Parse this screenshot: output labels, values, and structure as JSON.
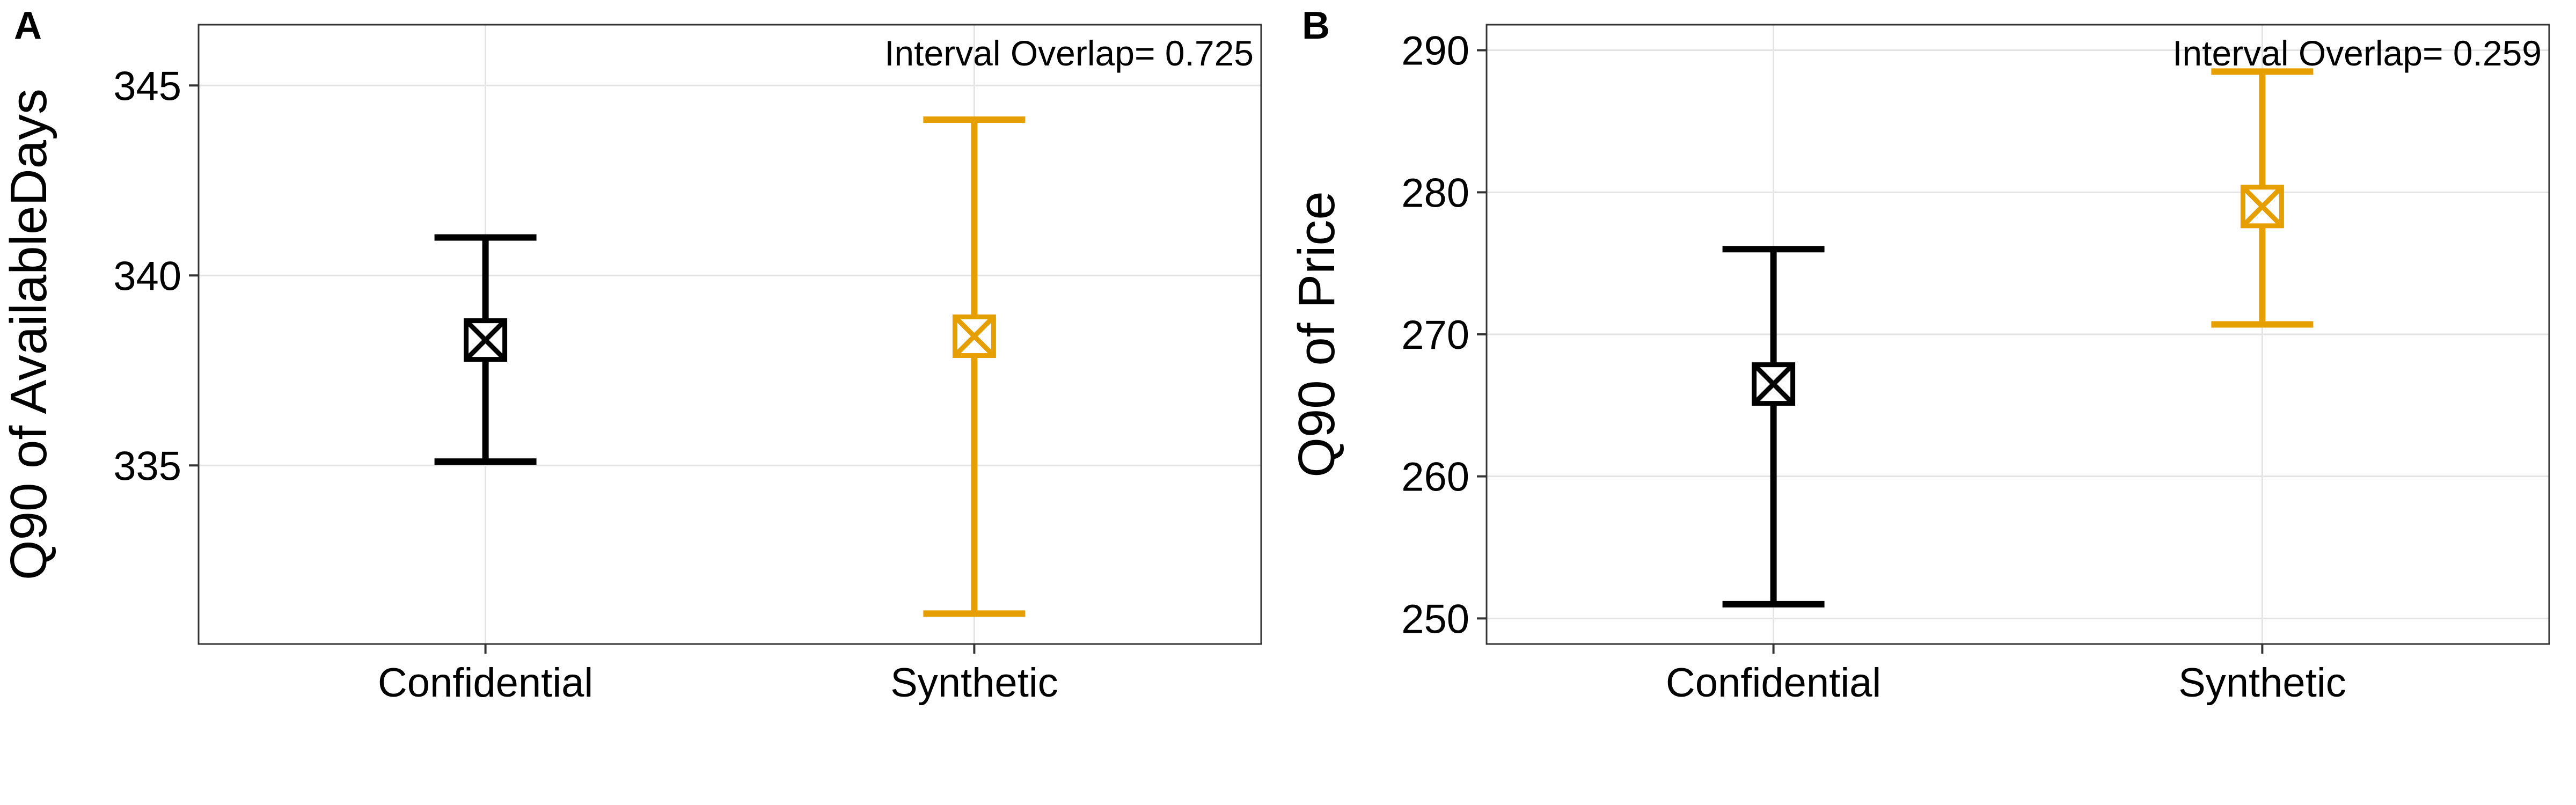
{
  "figure": {
    "background": "#ffffff"
  },
  "chart_data": [
    {
      "type": "errorbar",
      "panel_label": "A",
      "title": "",
      "xlabel": "",
      "ylabel": "Q90 of AvailableDays",
      "annotation": "Interval Overlap= 0.725",
      "categories": [
        "Confidential",
        "Synthetic"
      ],
      "series": [
        {
          "name": "Confidential",
          "color": "#000000",
          "low": 335.1,
          "mid": 338.3,
          "high": 341.0
        },
        {
          "name": "Synthetic",
          "color": "#E69F00",
          "low": 331.1,
          "mid": 338.4,
          "high": 344.1
        }
      ],
      "yticks": [
        335,
        340,
        345
      ],
      "ylim": [
        330.3,
        346.6
      ],
      "grid": true,
      "legend": "none",
      "marker": "square-cross"
    },
    {
      "type": "errorbar",
      "panel_label": "B",
      "title": "",
      "xlabel": "",
      "ylabel": "Q90 of Price",
      "annotation": "Interval Overlap= 0.259",
      "categories": [
        "Confidential",
        "Synthetic"
      ],
      "series": [
        {
          "name": "Confidential",
          "color": "#000000",
          "low": 251.0,
          "mid": 266.5,
          "high": 276.0
        },
        {
          "name": "Synthetic",
          "color": "#E69F00",
          "low": 270.7,
          "mid": 279.0,
          "high": 288.5
        }
      ],
      "yticks": [
        250,
        260,
        270,
        280,
        290
      ],
      "ylim": [
        248.2,
        291.8
      ],
      "grid": true,
      "legend": "none",
      "marker": "square-cross"
    }
  ]
}
